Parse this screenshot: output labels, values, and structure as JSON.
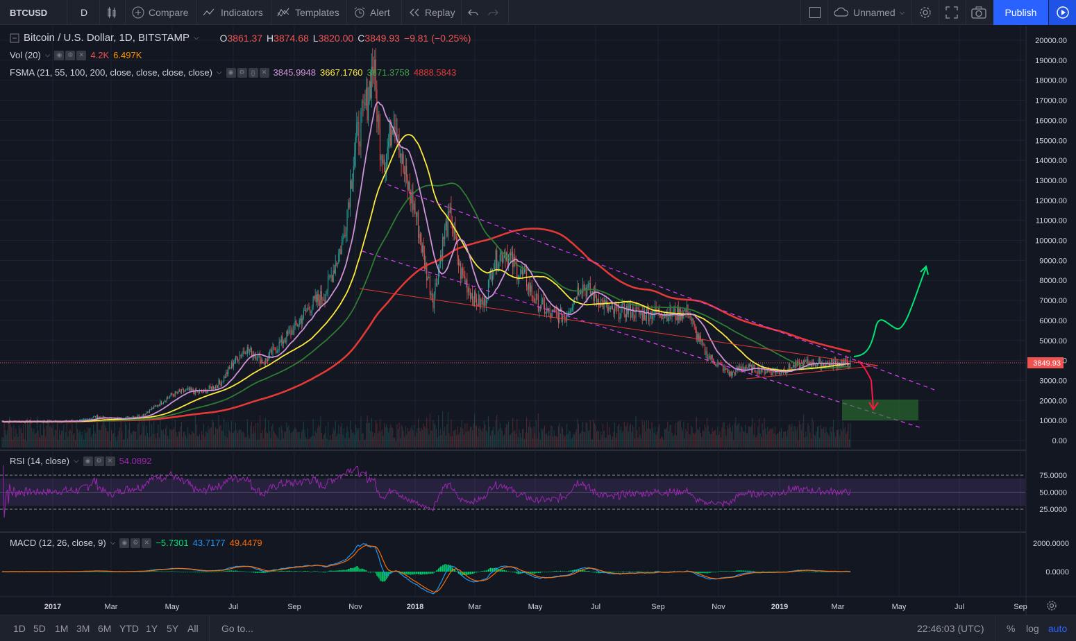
{
  "toolbar": {
    "symbol": "BTCUSD",
    "interval": "D",
    "compare": "Compare",
    "indicators": "Indicators",
    "templates": "Templates",
    "alert": "Alert",
    "replay": "Replay",
    "layout_name": "Unnamed",
    "publish": "Publish"
  },
  "legend": {
    "main_title": "Bitcoin / U.S. Dollar, 1D, BITSTAMP",
    "o_label": "O",
    "o_value": "3861.37",
    "h_label": "H",
    "h_value": "3874.68",
    "l_label": "L",
    "l_value": "3820.00",
    "c_label": "C",
    "c_value": "3849.93",
    "change": "−9.81 (−0.25%)",
    "vol_title": "Vol (20)",
    "vol_v1": "4.2K",
    "vol_v2": "6.497K",
    "fsma_title": "FSMA (21, 55, 100, 200, close, close, close, close)",
    "fsma_v1": "3845.9948",
    "fsma_v2": "3667.1760",
    "fsma_v3": "3671.3758",
    "fsma_v4": "4888.5843",
    "rsi_title": "RSI (14, close)",
    "rsi_value": "54.0892",
    "macd_title": "MACD (12, 26, close, 9)",
    "macd_v1": "−5.7301",
    "macd_v2": "43.7177",
    "macd_v3": "49.4479"
  },
  "price_axis": {
    "labels": [
      "20000.00",
      "19000.00",
      "18000.00",
      "17000.00",
      "16000.00",
      "15000.00",
      "14000.00",
      "13000.00",
      "12000.00",
      "11000.00",
      "10000.00",
      "9000.00",
      "8000.00",
      "7000.00",
      "6000.00",
      "5000.00",
      "4000.00",
      "3000.00",
      "2000.00",
      "1000.00",
      "0.00"
    ],
    "current_price": "3849.93"
  },
  "rsi_axis": {
    "labels": [
      "75.0000",
      "50.0000",
      "25.0000"
    ]
  },
  "macd_axis": {
    "labels": [
      "2000.0000",
      "0.0000"
    ]
  },
  "time_axis": {
    "labels": [
      "2017",
      "Mar",
      "May",
      "Jul",
      "Sep",
      "Nov",
      "2018",
      "Mar",
      "May",
      "Jul",
      "Sep",
      "Nov",
      "2019",
      "Mar",
      "May",
      "Jul",
      "Sep"
    ]
  },
  "colors": {
    "background": "#131722",
    "sma21": "#ce93d8",
    "sma55": "#ffeb3b",
    "sma100": "#2e7d32",
    "sma200": "#e53935",
    "candle_up": "#26a69a",
    "candle_down": "#ef5350",
    "rsi": "#9c27b0",
    "macd": "#2196f3",
    "signal": "#ff6d00",
    "hist": "#00e676"
  },
  "bottom": {
    "ranges": [
      "1D",
      "5D",
      "1M",
      "3M",
      "6M",
      "YTD",
      "1Y",
      "5Y",
      "All"
    ],
    "goto": "Go to...",
    "clock": "22:46:03 (UTC)",
    "percent": "%",
    "log": "log",
    "auto": "auto"
  },
  "chart_data": {
    "type": "line",
    "title": "Bitcoin / U.S. Dollar, 1D, BITSTAMP",
    "ylim": [
      0,
      20000
    ],
    "x": [
      "2017-01",
      "2017-02",
      "2017-03",
      "2017-04",
      "2017-05",
      "2017-06",
      "2017-07",
      "2017-08",
      "2017-09",
      "2017-10",
      "2017-11",
      "2017-12",
      "2018-01",
      "2018-02",
      "2018-03",
      "2018-04",
      "2018-05",
      "2018-06",
      "2018-07",
      "2018-08",
      "2018-09",
      "2018-10",
      "2018-11",
      "2018-12",
      "2019-01",
      "2019-02",
      "2019-03"
    ],
    "series": [
      {
        "name": "BTCUSD",
        "values": [
          950,
          1050,
          1100,
          1300,
          2200,
          2500,
          2700,
          4200,
          4300,
          6200,
          9800,
          14000,
          11000,
          9500,
          7000,
          8900,
          7500,
          6400,
          7700,
          6700,
          6600,
          6300,
          4300,
          3600,
          3500,
          3800,
          3850
        ]
      }
    ]
  }
}
